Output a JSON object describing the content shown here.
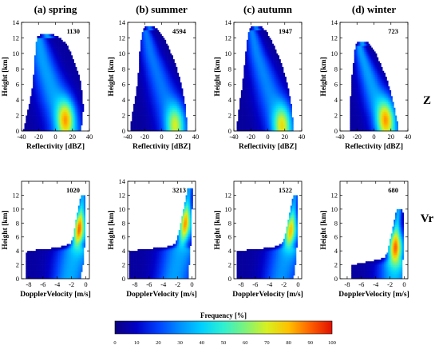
{
  "figure": {
    "panel_titles": [
      "(a) spring",
      "(b) summer",
      "(c) autumn",
      "(d) winter"
    ],
    "row_labels": [
      "Z",
      "Vr"
    ],
    "colorbar": {
      "title": "Frequency [%]",
      "ticks": [
        "0",
        "10",
        "20",
        "30",
        "40",
        "50",
        "60",
        "70",
        "80",
        "90",
        "100"
      ],
      "colors": [
        "#0c0080",
        "#0000c8",
        "#0040ff",
        "#0090ff",
        "#00d0ff",
        "#30f0d0",
        "#7df27a",
        "#d8f020",
        "#ffc000",
        "#ff6000",
        "#e01000"
      ]
    }
  },
  "chart_data": [
    {
      "type": "heatmap",
      "panel": "(a) spring",
      "row": "Z",
      "count": "1130",
      "xlabel": "Reflectivity [dBZ]",
      "ylabel": "Height [km]",
      "xlim": [
        -40,
        40
      ],
      "ylim": [
        0,
        14
      ],
      "xticks": [
        -40,
        -20,
        0,
        20,
        40
      ],
      "yticks": [
        0,
        2,
        4,
        6,
        8,
        10,
        12,
        14
      ],
      "envelope": [
        [
          0,
          -38,
          30
        ],
        [
          1,
          -36,
          31
        ],
        [
          2,
          -34,
          32
        ],
        [
          3,
          -32,
          33
        ],
        [
          4,
          -30,
          32
        ],
        [
          5,
          -28,
          31
        ],
        [
          6,
          -27,
          30
        ],
        [
          7,
          -26,
          28
        ],
        [
          8,
          -25,
          25
        ],
        [
          9,
          -25,
          22
        ],
        [
          10,
          -24,
          18
        ],
        [
          11,
          -23,
          14
        ],
        [
          12,
          -22,
          6
        ],
        [
          12.5,
          -18,
          -4
        ]
      ],
      "ridge": [
        [
          0,
          12
        ],
        [
          1,
          10
        ],
        [
          2,
          7
        ],
        [
          3,
          4
        ],
        [
          4,
          0
        ],
        [
          5,
          -3
        ],
        [
          6,
          -6
        ],
        [
          7,
          -9
        ],
        [
          8,
          -12
        ],
        [
          9,
          -15
        ],
        [
          10,
          -17
        ],
        [
          11,
          -19
        ],
        [
          12,
          -20
        ]
      ],
      "peak": {
        "x": 12,
        "y": 1.5
      },
      "max_pct": 85
    },
    {
      "type": "heatmap",
      "panel": "(b) summer",
      "row": "Z",
      "count": "4594",
      "xlabel": "Reflectivity [dBZ]",
      "ylabel": "Height [km]",
      "xlim": [
        -40,
        40
      ],
      "ylim": [
        0,
        14
      ],
      "xticks": [
        -40,
        -20,
        0,
        20,
        40
      ],
      "yticks": [
        0,
        2,
        4,
        6,
        8,
        10,
        12,
        14
      ],
      "envelope": [
        [
          0,
          -36,
          30
        ],
        [
          1,
          -36,
          30
        ],
        [
          2,
          -35,
          29
        ],
        [
          3,
          -33,
          28
        ],
        [
          4,
          -32,
          27
        ],
        [
          5,
          -30,
          25
        ],
        [
          6,
          -29,
          23
        ],
        [
          7,
          -28,
          21
        ],
        [
          8,
          -27,
          18
        ],
        [
          9,
          -27,
          15
        ],
        [
          10,
          -26,
          11
        ],
        [
          11,
          -25,
          7
        ],
        [
          12,
          -24,
          3
        ],
        [
          13,
          -22,
          -4
        ],
        [
          13.5,
          -20,
          -10
        ]
      ],
      "ridge": [
        [
          0,
          16
        ],
        [
          1,
          14
        ],
        [
          2,
          11
        ],
        [
          3,
          8
        ],
        [
          4,
          5
        ],
        [
          5,
          2
        ],
        [
          6,
          -1
        ],
        [
          7,
          -4
        ],
        [
          8,
          -7
        ],
        [
          9,
          -10
        ],
        [
          10,
          -13
        ],
        [
          11,
          -15
        ],
        [
          12,
          -17
        ],
        [
          13,
          -19
        ]
      ],
      "peak": {
        "x": 16,
        "y": 0.8
      },
      "max_pct": 70
    },
    {
      "type": "heatmap",
      "panel": "(c) autumn",
      "row": "Z",
      "count": "1947",
      "xlabel": "Reflectivity [dBZ]",
      "ylabel": "Height [km]",
      "xlim": [
        -40,
        40
      ],
      "ylim": [
        0,
        14
      ],
      "xticks": [
        -40,
        -20,
        0,
        20,
        40
      ],
      "yticks": [
        0,
        2,
        4,
        6,
        8,
        10,
        12,
        14
      ],
      "envelope": [
        [
          0,
          -36,
          30
        ],
        [
          1,
          -36,
          30
        ],
        [
          2,
          -35,
          29
        ],
        [
          3,
          -34,
          28
        ],
        [
          4,
          -33,
          27
        ],
        [
          5,
          -31,
          25
        ],
        [
          6,
          -30,
          23
        ],
        [
          7,
          -29,
          21
        ],
        [
          8,
          -28,
          18
        ],
        [
          9,
          -27,
          15
        ],
        [
          10,
          -26,
          11
        ],
        [
          11,
          -25,
          7
        ],
        [
          12,
          -24,
          3
        ],
        [
          13,
          -22,
          -3
        ],
        [
          13.5,
          -20,
          -9
        ]
      ],
      "ridge": [
        [
          0,
          17
        ],
        [
          1,
          14
        ],
        [
          2,
          11
        ],
        [
          3,
          8
        ],
        [
          4,
          5
        ],
        [
          5,
          2
        ],
        [
          6,
          -1
        ],
        [
          7,
          -4
        ],
        [
          8,
          -7
        ],
        [
          9,
          -10
        ],
        [
          10,
          -13
        ],
        [
          11,
          -15
        ],
        [
          12,
          -17
        ],
        [
          13,
          -19
        ]
      ],
      "peak": {
        "x": 17,
        "y": 0.8
      },
      "max_pct": 75
    },
    {
      "type": "heatmap",
      "panel": "(d) winter",
      "row": "Z",
      "count": "723",
      "xlabel": "Reflectivity [dBZ]",
      "ylabel": "Height [km]",
      "xlim": [
        -40,
        40
      ],
      "ylim": [
        0,
        14
      ],
      "xticks": [
        -40,
        -20,
        0,
        20,
        40
      ],
      "yticks": [
        0,
        2,
        4,
        6,
        8,
        10,
        12,
        14
      ],
      "envelope": [
        [
          0,
          -28,
          28
        ],
        [
          1,
          -28,
          28
        ],
        [
          2,
          -28,
          26
        ],
        [
          3,
          -28,
          24
        ],
        [
          4,
          -28,
          22
        ],
        [
          5,
          -27,
          20
        ],
        [
          6,
          -26,
          17
        ],
        [
          7,
          -26,
          14
        ],
        [
          8,
          -25,
          10
        ],
        [
          9,
          -24,
          6
        ],
        [
          10,
          -23,
          2
        ],
        [
          11,
          -22,
          -4
        ],
        [
          11.5,
          -20,
          -8
        ]
      ],
      "ridge": [
        [
          0,
          16
        ],
        [
          1,
          13
        ],
        [
          2,
          10
        ],
        [
          3,
          6
        ],
        [
          4,
          3
        ],
        [
          5,
          0
        ],
        [
          6,
          -3
        ],
        [
          7,
          -6
        ],
        [
          8,
          -9
        ],
        [
          9,
          -12
        ],
        [
          10,
          -15
        ],
        [
          11,
          -17
        ]
      ],
      "peak": {
        "x": 14,
        "y": 1.5
      },
      "max_pct": 85
    },
    {
      "type": "heatmap",
      "panel": "(a) spring",
      "row": "Vr",
      "count": "1020",
      "xlabel": "DopplerVelocity [m/s]",
      "ylabel": "Height [km]",
      "xlim": [
        -9,
        0.5
      ],
      "ylim": [
        0,
        14
      ],
      "xticks": [
        -8,
        -6,
        -4,
        -2,
        0
      ],
      "yticks": [
        0,
        2,
        4,
        6,
        8,
        10,
        12
      ],
      "envelope": [
        [
          0,
          -8.5,
          -0.8
        ],
        [
          1,
          -8.5,
          -0.6
        ],
        [
          2,
          -8.5,
          -0.4
        ],
        [
          3,
          -8.5,
          -0.3
        ],
        [
          4,
          -8.2,
          -0.2
        ],
        [
          4.5,
          -3.8,
          -0.2
        ],
        [
          5,
          -2.2,
          -0.1
        ],
        [
          6,
          -1.8,
          0.0
        ],
        [
          7,
          -1.6,
          0.0
        ],
        [
          8,
          -1.5,
          0.0
        ],
        [
          9,
          -1.3,
          0.0
        ],
        [
          10,
          -1.1,
          0.0
        ],
        [
          11,
          -0.9,
          0.0
        ],
        [
          12,
          -0.7,
          -0.2
        ]
      ],
      "ridge": [
        [
          0,
          -2.3
        ],
        [
          1,
          -2.1
        ],
        [
          2,
          -1.9
        ],
        [
          3,
          -1.7
        ],
        [
          4,
          -1.5
        ],
        [
          5,
          -1.3
        ],
        [
          6,
          -1.1
        ],
        [
          7,
          -0.95
        ],
        [
          8,
          -0.85
        ],
        [
          9,
          -0.7
        ],
        [
          10,
          -0.6
        ],
        [
          11,
          -0.5
        ],
        [
          12,
          -0.45
        ]
      ],
      "peak": {
        "x": -0.9,
        "y": 7.2
      },
      "max_pct": 90
    },
    {
      "type": "heatmap",
      "panel": "(b) summer",
      "row": "Vr",
      "count": "3213",
      "xlabel": "DopplerVelocity [m/s]",
      "ylabel": "Height [km]",
      "xlim": [
        -9,
        0.5
      ],
      "ylim": [
        0,
        14
      ],
      "xticks": [
        -8,
        -6,
        -4,
        -2,
        0
      ],
      "yticks": [
        0,
        2,
        4,
        6,
        8,
        10,
        12,
        14
      ],
      "envelope": [
        [
          0,
          -8.8,
          -0.6
        ],
        [
          1,
          -8.8,
          -0.5
        ],
        [
          2,
          -8.8,
          -0.4
        ],
        [
          3,
          -8.8,
          -0.3
        ],
        [
          4,
          -8.8,
          -0.2
        ],
        [
          4.6,
          -3.5,
          -0.2
        ],
        [
          5,
          -2.4,
          -0.1
        ],
        [
          6,
          -2.0,
          0.0
        ],
        [
          7,
          -1.8,
          0.0
        ],
        [
          8,
          -1.6,
          0.0
        ],
        [
          9,
          -1.4,
          0.0
        ],
        [
          10,
          -1.2,
          0.0
        ],
        [
          11,
          -1.0,
          0.1
        ],
        [
          12,
          -0.8,
          0.1
        ],
        [
          13,
          -0.6,
          0.0
        ]
      ],
      "ridge": [
        [
          0,
          -2.5
        ],
        [
          1,
          -2.3
        ],
        [
          2,
          -2.1
        ],
        [
          3,
          -1.9
        ],
        [
          4,
          -1.7
        ],
        [
          5,
          -1.45
        ],
        [
          6,
          -1.25
        ],
        [
          7,
          -1.05
        ],
        [
          8,
          -0.9
        ],
        [
          9,
          -0.8
        ],
        [
          10,
          -0.7
        ],
        [
          11,
          -0.6
        ],
        [
          12,
          -0.5
        ],
        [
          13,
          -0.4
        ]
      ],
      "peak": {
        "x": -1.0,
        "y": 8.0
      },
      "max_pct": 85
    },
    {
      "type": "heatmap",
      "panel": "(c) autumn",
      "row": "Vr",
      "count": "1522",
      "xlabel": "DopplerVelocity [m/s]",
      "ylabel": "Height [km]",
      "xlim": [
        -9,
        0.5
      ],
      "ylim": [
        0,
        14
      ],
      "xticks": [
        -8,
        -6,
        -4,
        -2,
        0
      ],
      "yticks": [
        0,
        2,
        4,
        6,
        8,
        10,
        12
      ],
      "envelope": [
        [
          0,
          -8.6,
          -0.7
        ],
        [
          1,
          -8.6,
          -0.5
        ],
        [
          2,
          -8.6,
          -0.4
        ],
        [
          3,
          -8.6,
          -0.3
        ],
        [
          4,
          -8.5,
          -0.2
        ],
        [
          4.5,
          -3.5,
          -0.2
        ],
        [
          5,
          -2.3,
          -0.1
        ],
        [
          6,
          -1.9,
          0.0
        ],
        [
          7,
          -1.7,
          0.0
        ],
        [
          8,
          -1.5,
          0.0
        ],
        [
          9,
          -1.3,
          0.0
        ],
        [
          10,
          -1.1,
          0.0
        ],
        [
          11,
          -0.9,
          0.0
        ],
        [
          12,
          -0.7,
          -0.1
        ]
      ],
      "ridge": [
        [
          0,
          -2.4
        ],
        [
          1,
          -2.2
        ],
        [
          2,
          -2.0
        ],
        [
          3,
          -1.8
        ],
        [
          4,
          -1.6
        ],
        [
          5,
          -1.4
        ],
        [
          6,
          -1.2
        ],
        [
          7,
          -1.0
        ],
        [
          8,
          -0.9
        ],
        [
          9,
          -0.75
        ],
        [
          10,
          -0.65
        ],
        [
          11,
          -0.55
        ],
        [
          12,
          -0.45
        ]
      ],
      "peak": {
        "x": -1.1,
        "y": 7.0
      },
      "max_pct": 80
    },
    {
      "type": "heatmap",
      "panel": "(d) winter",
      "row": "Vr",
      "count": "680",
      "xlabel": "DopplerVelocity [m/s]",
      "ylabel": "Height [km]",
      "xlim": [
        -9,
        0.5
      ],
      "ylim": [
        0,
        14
      ],
      "xticks": [
        -8,
        -6,
        -4,
        -2,
        0
      ],
      "yticks": [
        0,
        2,
        4,
        6,
        8,
        10,
        12
      ],
      "envelope": [
        [
          0,
          -7.5,
          -0.3
        ],
        [
          1,
          -7.5,
          -0.2
        ],
        [
          2,
          -7.3,
          -0.2
        ],
        [
          2.8,
          -3.5,
          -0.2
        ],
        [
          3,
          -2.8,
          -0.1
        ],
        [
          4,
          -2.3,
          0.0
        ],
        [
          5,
          -2.1,
          0.0
        ],
        [
          6,
          -1.9,
          0.0
        ],
        [
          7,
          -1.7,
          0.0
        ],
        [
          8,
          -1.5,
          0.0
        ],
        [
          9,
          -1.3,
          -0.1
        ],
        [
          10,
          -1.0,
          -0.3
        ]
      ],
      "ridge": [
        [
          0,
          -1.5
        ],
        [
          1,
          -1.45
        ],
        [
          2,
          -1.4
        ],
        [
          3,
          -1.35
        ],
        [
          4,
          -1.3
        ],
        [
          5,
          -1.25
        ],
        [
          6,
          -1.2
        ],
        [
          7,
          -1.1
        ],
        [
          8,
          -1.0
        ],
        [
          9,
          -0.9
        ],
        [
          10,
          -0.8
        ]
      ],
      "peak": {
        "x": -1.2,
        "y": 4.5
      },
      "max_pct": 90
    }
  ]
}
